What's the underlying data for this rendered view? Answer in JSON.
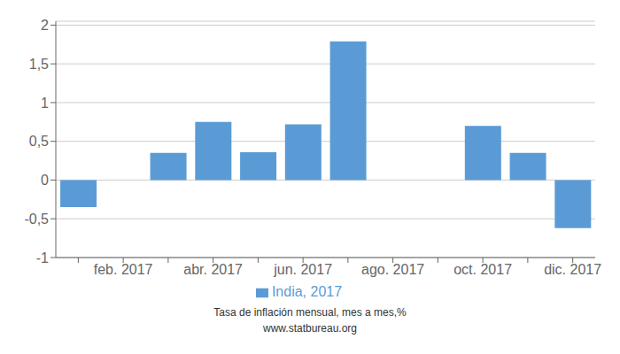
{
  "chart_data": {
    "type": "bar",
    "categories": [
      null,
      "feb. 2017",
      null,
      "abr. 2017",
      null,
      "jun. 2017",
      null,
      "ago. 2017",
      null,
      "oct. 2017",
      null,
      "dic. 2017"
    ],
    "series": [
      {
        "name": "India, 2017",
        "color": "#5B9BD5",
        "values": [
          -0.35,
          0.0,
          0.35,
          0.75,
          0.36,
          0.72,
          1.79,
          0.0,
          0.0,
          0.7,
          0.35,
          -0.62
        ]
      }
    ],
    "ylim": [
      -1.0,
      2.05
    ],
    "yticks": [
      -1,
      {
        "value": -0.5,
        "label": "-0,5"
      },
      0,
      {
        "value": 0.5,
        "label": "0,5"
      },
      1,
      {
        "value": 1.5,
        "label": "1,5"
      },
      2
    ],
    "grid": true,
    "legend": "bottom",
    "annotations": [
      "Tasa de inflación mensual, mes a mes,%",
      "www.statbureau.org"
    ]
  }
}
